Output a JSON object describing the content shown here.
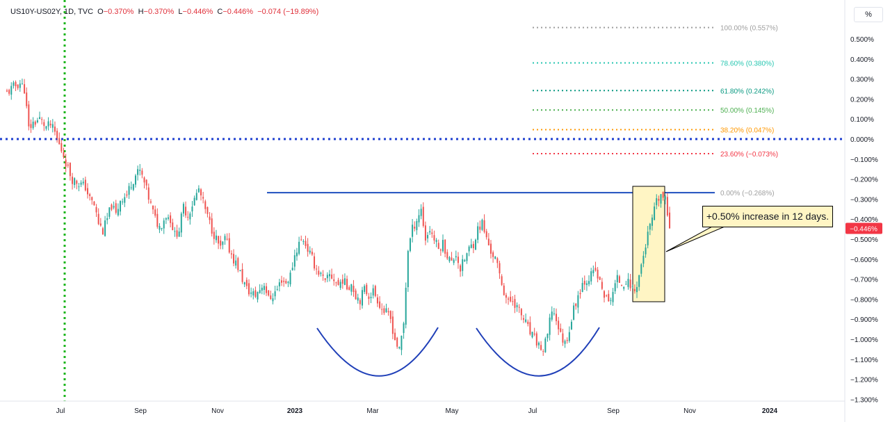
{
  "header": {
    "symbol": "US10Y-US02Y, 1D, TVC",
    "o_label": "O",
    "o_value": "−0.370%",
    "h_label": "H",
    "h_value": "−0.370%",
    "l_label": "L",
    "l_value": "−0.446%",
    "c_label": "C",
    "c_value": "−0.446%",
    "change": "−0.074 (−19.89%)"
  },
  "unit_button": "%",
  "callout": {
    "text": "+0.50% increase in 12 days."
  },
  "colors": {
    "up": "#26a69a",
    "down": "#ef5350",
    "hline": "#1f4fbf",
    "vline": "#1db51d",
    "zero_line": "#1e3fcf",
    "last_price": "#f23645",
    "box_fill": "#fff5c4"
  },
  "chart_data": {
    "type": "candlestick",
    "title": "US10Y-US02Y, 1D, TVC",
    "yunit": "%",
    "ylim": [
      -1.3,
      0.557
    ],
    "x_ticks": [
      "Jul",
      "Sep",
      "Nov",
      "2023",
      "Mar",
      "May",
      "Jul",
      "Sep",
      "Nov",
      "2024"
    ],
    "y_ticks": [
      "0.500%",
      "0.400%",
      "0.300%",
      "0.200%",
      "0.100%",
      "0.000%",
      "−0.100%",
      "−0.200%",
      "−0.300%",
      "−0.400%",
      "−0.500%",
      "−0.600%",
      "−0.700%",
      "−0.800%",
      "−0.900%",
      "−1.000%",
      "−1.100%",
      "−1.200%",
      "−1.300%"
    ],
    "y_tick_values": [
      0.5,
      0.4,
      0.3,
      0.2,
      0.1,
      0.0,
      -0.1,
      -0.2,
      -0.3,
      -0.4,
      -0.5,
      -0.6,
      -0.7,
      -0.8,
      -0.9,
      -1.0,
      -1.1,
      -1.2,
      -1.3
    ],
    "last_price": {
      "value": -0.446,
      "label": "−0.446%"
    },
    "fib_levels": [
      {
        "ratio": "100.00%",
        "price": 0.557,
        "label": "100.00% (0.557%)",
        "color": "#9e9e9e"
      },
      {
        "ratio": "78.60%",
        "price": 0.38,
        "label": "78.60% (0.380%)",
        "color": "#26c6b0"
      },
      {
        "ratio": "61.80%",
        "price": 0.242,
        "label": "61.80% (0.242%)",
        "color": "#089981"
      },
      {
        "ratio": "50.00%",
        "price": 0.145,
        "label": "50.00% (0.145%)",
        "color": "#4caf50"
      },
      {
        "ratio": "38.20%",
        "price": 0.047,
        "label": "38.20% (0.047%)",
        "color": "#ff9800"
      },
      {
        "ratio": "23.60%",
        "price": -0.073,
        "label": "23.60% (−0.073%)",
        "color": "#f23645"
      },
      {
        "ratio": "0.00%",
        "price": -0.268,
        "label": "0.00% (−0.268%)",
        "color": "#9e9e9e"
      }
    ],
    "resistance_level": -0.268,
    "zero_line": 0.0,
    "close_path": [
      {
        "bar": 0,
        "value": 0.23
      },
      {
        "bar": 3,
        "value": 0.26
      },
      {
        "bar": 6,
        "value": 0.28
      },
      {
        "bar": 8,
        "value": 0.25
      },
      {
        "bar": 10,
        "value": 0.05
      },
      {
        "bar": 12,
        "value": 0.08
      },
      {
        "bar": 15,
        "value": 0.1
      },
      {
        "bar": 18,
        "value": 0.06
      },
      {
        "bar": 20,
        "value": 0.07
      },
      {
        "bar": 22,
        "value": 0.03
      },
      {
        "bar": 24,
        "value": -0.03
      },
      {
        "bar": 26,
        "value": -0.08
      },
      {
        "bar": 28,
        "value": -0.15
      },
      {
        "bar": 30,
        "value": -0.2
      },
      {
        "bar": 33,
        "value": -0.22
      },
      {
        "bar": 36,
        "value": -0.24
      },
      {
        "bar": 38,
        "value": -0.3
      },
      {
        "bar": 40,
        "value": -0.33
      },
      {
        "bar": 42,
        "value": -0.42
      },
      {
        "bar": 44,
        "value": -0.46
      },
      {
        "bar": 46,
        "value": -0.4
      },
      {
        "bar": 48,
        "value": -0.33
      },
      {
        "bar": 50,
        "value": -0.38
      },
      {
        "bar": 52,
        "value": -0.3
      },
      {
        "bar": 55,
        "value": -0.28
      },
      {
        "bar": 57,
        "value": -0.22
      },
      {
        "bar": 59,
        "value": -0.18
      },
      {
        "bar": 61,
        "value": -0.16
      },
      {
        "bar": 63,
        "value": -0.22
      },
      {
        "bar": 66,
        "value": -0.33
      },
      {
        "bar": 68,
        "value": -0.4
      },
      {
        "bar": 70,
        "value": -0.44
      },
      {
        "bar": 73,
        "value": -0.38
      },
      {
        "bar": 75,
        "value": -0.4
      },
      {
        "bar": 77,
        "value": -0.48
      },
      {
        "bar": 79,
        "value": -0.45
      },
      {
        "bar": 81,
        "value": -0.34
      },
      {
        "bar": 83,
        "value": -0.38
      },
      {
        "bar": 86,
        "value": -0.3
      },
      {
        "bar": 88,
        "value": -0.25
      },
      {
        "bar": 90,
        "value": -0.32
      },
      {
        "bar": 92,
        "value": -0.39
      },
      {
        "bar": 94,
        "value": -0.45
      },
      {
        "bar": 96,
        "value": -0.5
      },
      {
        "bar": 98,
        "value": -0.55
      },
      {
        "bar": 100,
        "value": -0.5
      },
      {
        "bar": 102,
        "value": -0.55
      },
      {
        "bar": 104,
        "value": -0.6
      },
      {
        "bar": 106,
        "value": -0.64
      },
      {
        "bar": 108,
        "value": -0.7
      },
      {
        "bar": 110,
        "value": -0.75
      },
      {
        "bar": 112,
        "value": -0.77
      },
      {
        "bar": 114,
        "value": -0.78
      },
      {
        "bar": 116,
        "value": -0.75
      },
      {
        "bar": 118,
        "value": -0.72
      },
      {
        "bar": 120,
        "value": -0.8
      },
      {
        "bar": 122,
        "value": -0.78
      },
      {
        "bar": 124,
        "value": -0.75
      },
      {
        "bar": 126,
        "value": -0.7
      },
      {
        "bar": 128,
        "value": -0.72
      },
      {
        "bar": 130,
        "value": -0.68
      },
      {
        "bar": 132,
        "value": -0.58
      },
      {
        "bar": 134,
        "value": -0.52
      },
      {
        "bar": 136,
        "value": -0.5
      },
      {
        "bar": 138,
        "value": -0.55
      },
      {
        "bar": 140,
        "value": -0.6
      },
      {
        "bar": 142,
        "value": -0.65
      },
      {
        "bar": 144,
        "value": -0.68
      },
      {
        "bar": 146,
        "value": -0.72
      },
      {
        "bar": 148,
        "value": -0.68
      },
      {
        "bar": 150,
        "value": -0.7
      },
      {
        "bar": 152,
        "value": -0.73
      },
      {
        "bar": 154,
        "value": -0.7
      },
      {
        "bar": 156,
        "value": -0.74
      },
      {
        "bar": 158,
        "value": -0.72
      },
      {
        "bar": 160,
        "value": -0.78
      },
      {
        "bar": 162,
        "value": -0.8
      },
      {
        "bar": 164,
        "value": -0.75
      },
      {
        "bar": 166,
        "value": -0.78
      },
      {
        "bar": 168,
        "value": -0.76
      },
      {
        "bar": 170,
        "value": -0.8
      },
      {
        "bar": 172,
        "value": -0.85
      },
      {
        "bar": 174,
        "value": -0.87
      },
      {
        "bar": 176,
        "value": -0.9
      },
      {
        "bar": 178,
        "value": -1.0
      },
      {
        "bar": 180,
        "value": -1.06
      },
      {
        "bar": 182,
        "value": -0.92
      },
      {
        "bar": 184,
        "value": -0.55
      },
      {
        "bar": 186,
        "value": -0.45
      },
      {
        "bar": 188,
        "value": -0.4
      },
      {
        "bar": 190,
        "value": -0.35
      },
      {
        "bar": 192,
        "value": -0.5
      },
      {
        "bar": 194,
        "value": -0.45
      },
      {
        "bar": 196,
        "value": -0.5
      },
      {
        "bar": 198,
        "value": -0.55
      },
      {
        "bar": 200,
        "value": -0.52
      },
      {
        "bar": 202,
        "value": -0.58
      },
      {
        "bar": 204,
        "value": -0.62
      },
      {
        "bar": 206,
        "value": -0.57
      },
      {
        "bar": 208,
        "value": -0.65
      },
      {
        "bar": 210,
        "value": -0.6
      },
      {
        "bar": 212,
        "value": -0.55
      },
      {
        "bar": 214,
        "value": -0.52
      },
      {
        "bar": 216,
        "value": -0.45
      },
      {
        "bar": 218,
        "value": -0.42
      },
      {
        "bar": 220,
        "value": -0.5
      },
      {
        "bar": 222,
        "value": -0.56
      },
      {
        "bar": 224,
        "value": -0.6
      },
      {
        "bar": 226,
        "value": -0.68
      },
      {
        "bar": 228,
        "value": -0.76
      },
      {
        "bar": 230,
        "value": -0.82
      },
      {
        "bar": 232,
        "value": -0.8
      },
      {
        "bar": 234,
        "value": -0.84
      },
      {
        "bar": 236,
        "value": -0.88
      },
      {
        "bar": 238,
        "value": -0.92
      },
      {
        "bar": 240,
        "value": -0.97
      },
      {
        "bar": 242,
        "value": -1.0
      },
      {
        "bar": 244,
        "value": -1.03
      },
      {
        "bar": 246,
        "value": -1.06
      },
      {
        "bar": 248,
        "value": -0.98
      },
      {
        "bar": 250,
        "value": -0.85
      },
      {
        "bar": 252,
        "value": -0.9
      },
      {
        "bar": 254,
        "value": -0.98
      },
      {
        "bar": 256,
        "value": -1.02
      },
      {
        "bar": 258,
        "value": -0.95
      },
      {
        "bar": 260,
        "value": -0.85
      },
      {
        "bar": 262,
        "value": -0.78
      },
      {
        "bar": 264,
        "value": -0.72
      },
      {
        "bar": 266,
        "value": -0.7
      },
      {
        "bar": 268,
        "value": -0.68
      },
      {
        "bar": 270,
        "value": -0.66
      },
      {
        "bar": 272,
        "value": -0.72
      },
      {
        "bar": 274,
        "value": -0.78
      },
      {
        "bar": 276,
        "value": -0.82
      },
      {
        "bar": 278,
        "value": -0.76
      },
      {
        "bar": 280,
        "value": -0.7
      },
      {
        "bar": 282,
        "value": -0.72
      },
      {
        "bar": 284,
        "value": -0.71
      },
      {
        "bar": 286,
        "value": -0.73
      },
      {
        "bar": 288,
        "value": -0.76
      },
      {
        "bar": 290,
        "value": -0.68
      },
      {
        "bar": 292,
        "value": -0.58
      },
      {
        "bar": 294,
        "value": -0.48
      },
      {
        "bar": 296,
        "value": -0.4
      },
      {
        "bar": 298,
        "value": -0.32
      },
      {
        "bar": 300,
        "value": -0.28
      },
      {
        "bar": 302,
        "value": -0.31
      },
      {
        "bar": 304,
        "value": -0.446
      }
    ]
  }
}
